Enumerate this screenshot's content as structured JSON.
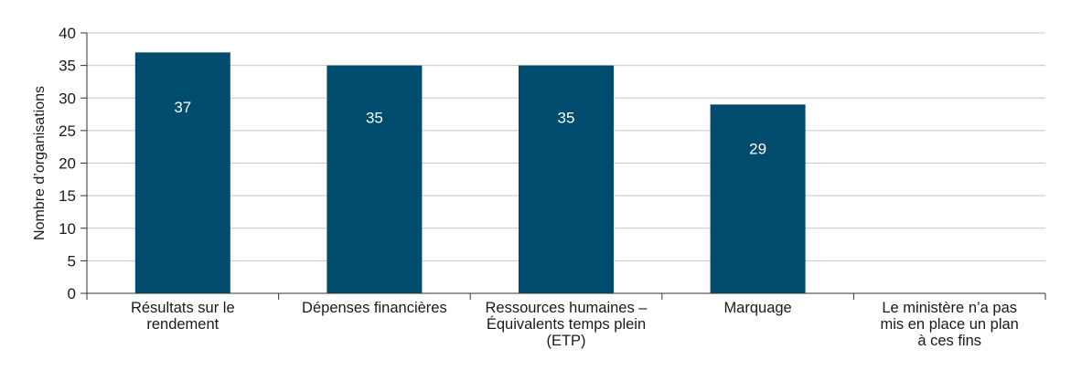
{
  "chart_data": {
    "type": "bar",
    "ylabel": "Nombre d’organisations",
    "xlabel": "",
    "ylim": [
      0,
      40
    ],
    "yticks": [
      0,
      5,
      10,
      15,
      20,
      25,
      30,
      35,
      40
    ],
    "grid": true,
    "categories": [
      [
        "Résultats sur le",
        "rendement"
      ],
      [
        "Dépenses financières"
      ],
      [
        "Ressources humaines –",
        "Équivalents temps plein",
        "(ETP)"
      ],
      [
        "Marquage"
      ],
      [
        "Le ministère n’a pas",
        "mis en place un plan",
        "à ces fins"
      ]
    ],
    "values": [
      37,
      35,
      35,
      29,
      null
    ],
    "data_labels": [
      "37",
      "35",
      "35",
      "29",
      ""
    ],
    "bar_color": "#004c6e",
    "grid_color": "#c8c8c8",
    "label_color": "#ffffff"
  }
}
